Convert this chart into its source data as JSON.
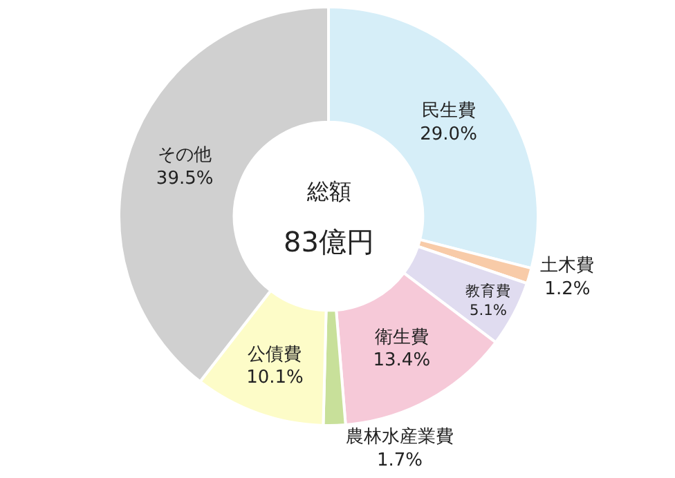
{
  "chart_data": {
    "type": "donut",
    "categories": [
      "民生費",
      "土木費",
      "教育費",
      "衛生費",
      "農林水産業費",
      "公債費",
      "その他"
    ],
    "values": [
      29.0,
      1.2,
      5.1,
      13.4,
      1.7,
      10.1,
      39.5
    ],
    "value_labels": [
      "29.0%",
      "1.2%",
      "5.1%",
      "13.4%",
      "1.7%",
      "10.1%",
      "39.5%"
    ],
    "colors": [
      "#d6eef8",
      "#f8cba8",
      "#e0dcf0",
      "#f6c9d8",
      "#c8e09a",
      "#fdfcc8",
      "#d0d0d0"
    ],
    "annotations": [
      "総額",
      "83億円"
    ],
    "legend": false
  }
}
